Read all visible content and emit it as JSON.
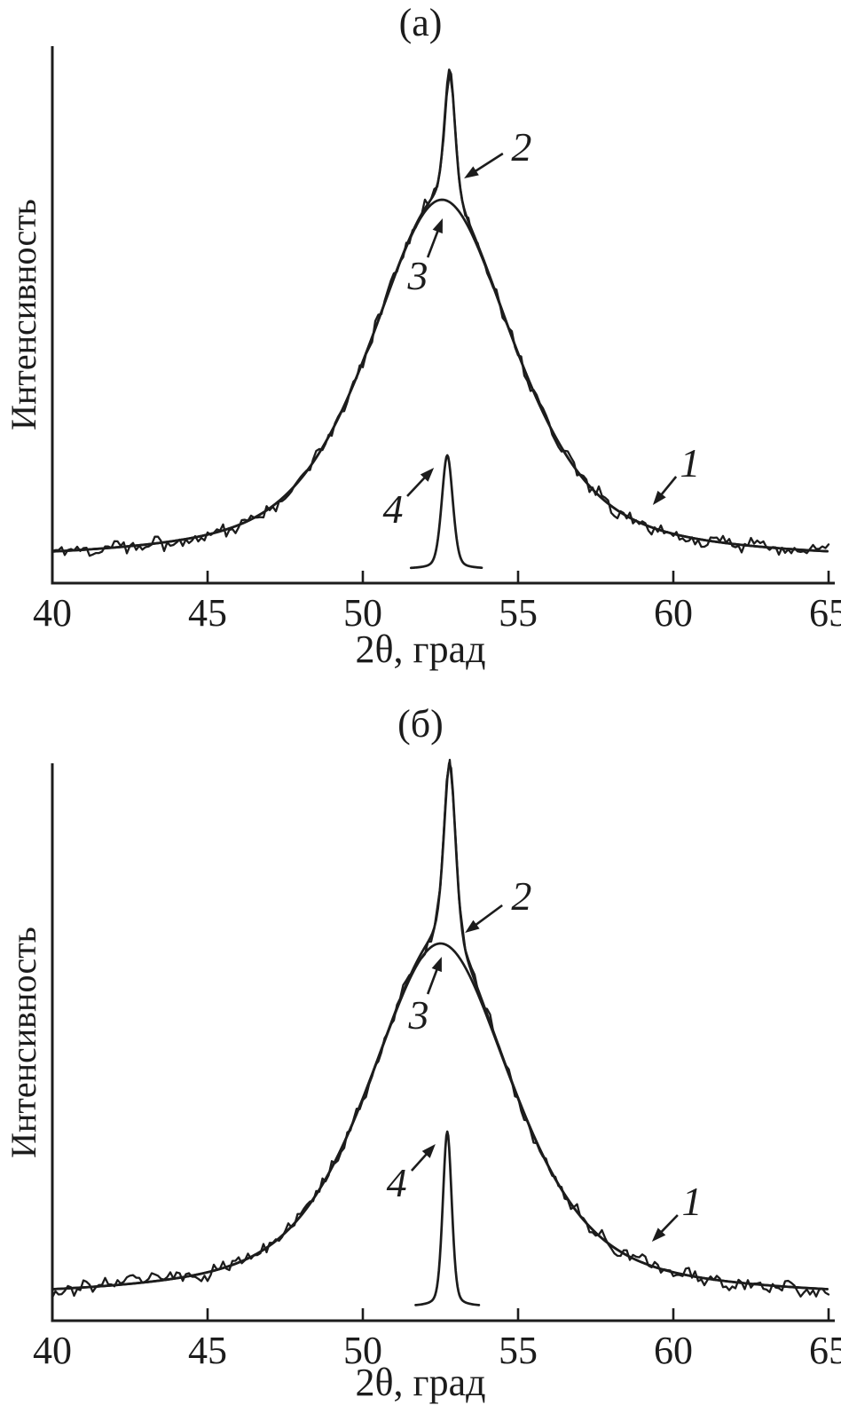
{
  "figure": {
    "kind": "x-ray-diffraction-profile-decomposition",
    "background": "#ffffff",
    "line_color": "#1c1c1c",
    "text_color": "#1c1c1c"
  },
  "chart_data": [
    {
      "panel": "a",
      "type": "line",
      "title": "(а)",
      "xlabel": "2θ, град",
      "ylabel": "Интенсивность",
      "xlim": [
        40,
        65
      ],
      "xticks": [
        40,
        45,
        50,
        55,
        60,
        65
      ],
      "ylim": [
        0,
        605
      ],
      "yticks": [],
      "grid": false,
      "legend": "none",
      "peaks": {
        "background": {
          "shape": "constant",
          "value": 24
        },
        "broad": {
          "shape": "pseudo_voigt",
          "center": 52.55,
          "fwhm": 5.6,
          "amplitude": 408,
          "eta": 0.6
        },
        "narrow": {
          "shape": "pseudo_voigt",
          "center": 52.8,
          "fwhm": 0.4,
          "amplitude": 150,
          "eta": 0.4
        },
        "instr": {
          "shape": "pseudo_voigt",
          "center": 52.72,
          "fwhm": 0.42,
          "amplitude": 128,
          "eta": 0.3,
          "baseline": 16
        }
      },
      "series": [
        {
          "label": "1",
          "name": "experimental-noisy-profile",
          "compose": [
            "background",
            "broad",
            "narrow"
          ],
          "step": 0.1,
          "noise": {
            "fast": 6,
            "slow": 5,
            "seed": 11
          }
        },
        {
          "label": "2",
          "name": "total-fit-narrow-component",
          "compose": [
            "background",
            "broad",
            "narrow"
          ],
          "step": 0.06
        },
        {
          "label": "3",
          "name": "broad-component-fit",
          "compose": [
            "background",
            "broad"
          ],
          "step": 0.06
        },
        {
          "label": "4",
          "name": "instrumental-function-peak",
          "compose": [
            "instr"
          ],
          "x_window": [
            51.55,
            53.85
          ],
          "step": 0.03
        }
      ],
      "annotations": [
        {
          "text": "2",
          "x": 55.11,
          "y": 492,
          "arrow_from": [
            54.51,
            484
          ],
          "arrow_to": [
            53.26,
            456
          ]
        },
        {
          "text": "3",
          "x": 51.77,
          "y": 347,
          "arrow_from": [
            52.09,
            367
          ],
          "arrow_to": [
            52.57,
            411
          ]
        },
        {
          "text": "1",
          "x": 60.54,
          "y": 136,
          "arrow_from": [
            60.09,
            120
          ],
          "arrow_to": [
            59.34,
            88
          ]
        },
        {
          "text": "4",
          "x": 50.97,
          "y": 84,
          "arrow_from": [
            51.43,
            98
          ],
          "arrow_to": [
            52.29,
            130
          ]
        }
      ]
    },
    {
      "panel": "б",
      "type": "line",
      "title": "(б)",
      "xlabel": "2θ, град",
      "ylabel": "Интенсивность",
      "xlim": [
        40,
        65
      ],
      "xticks": [
        40,
        45,
        50,
        55,
        60,
        65
      ],
      "ylim": [
        0,
        628
      ],
      "yticks": [],
      "grid": false,
      "legend": "none",
      "peaks": {
        "background": {
          "shape": "constant",
          "value": 24
        },
        "broad": {
          "shape": "pseudo_voigt",
          "center": 52.5,
          "fwhm": 5.6,
          "amplitude": 401,
          "eta": 0.6
        },
        "narrow": {
          "shape": "pseudo_voigt",
          "center": 52.8,
          "fwhm": 0.45,
          "amplitude": 208,
          "eta": 0.45
        },
        "instr": {
          "shape": "pseudo_voigt",
          "center": 52.72,
          "fwhm": 0.34,
          "amplitude": 197,
          "eta": 0.3,
          "baseline": 16
        }
      },
      "series": [
        {
          "label": "1",
          "name": "experimental-noisy-profile",
          "compose": [
            "background",
            "broad",
            "narrow"
          ],
          "step": 0.1,
          "noise": {
            "fast": 6,
            "slow": 5,
            "seed": 23
          }
        },
        {
          "label": "2",
          "name": "total-fit-narrow-component",
          "compose": [
            "background",
            "broad",
            "narrow"
          ],
          "step": 0.06
        },
        {
          "label": "3",
          "name": "broad-component-fit",
          "compose": [
            "background",
            "broad"
          ],
          "step": 0.06
        },
        {
          "label": "4",
          "name": "instrumental-function-peak",
          "compose": [
            "instr"
          ],
          "x_window": [
            51.7,
            53.75
          ],
          "step": 0.03
        }
      ],
      "annotations": [
        {
          "text": "2",
          "x": 55.11,
          "y": 479,
          "arrow_from": [
            54.49,
            468
          ],
          "arrow_to": [
            53.29,
            437
          ]
        },
        {
          "text": "3",
          "x": 51.8,
          "y": 345,
          "arrow_from": [
            52.09,
            368
          ],
          "arrow_to": [
            52.54,
            410
          ]
        },
        {
          "text": "1",
          "x": 60.6,
          "y": 135,
          "arrow_from": [
            60.14,
            119
          ],
          "arrow_to": [
            59.31,
            89
          ]
        },
        {
          "text": "4",
          "x": 51.09,
          "y": 156,
          "arrow_from": [
            51.57,
            169
          ],
          "arrow_to": [
            52.34,
            199
          ]
        }
      ]
    }
  ]
}
